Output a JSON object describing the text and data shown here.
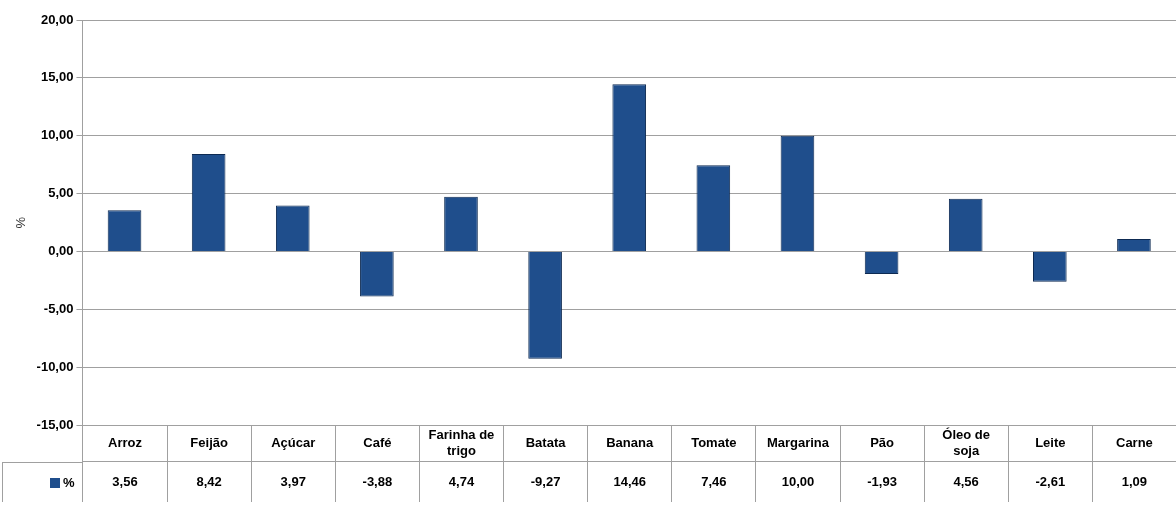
{
  "chart_data": {
    "type": "bar",
    "ylabel": "%",
    "categories": [
      "Arroz",
      "Feijão",
      "Açúcar",
      "Café",
      "Farinha de trigo",
      "Batata",
      "Banana",
      "Tomate",
      "Margarina",
      "Pão",
      "Óleo de soja",
      "Leite",
      "Carne"
    ],
    "series": [
      {
        "name": "%",
        "color": "#1f4e8c",
        "values": [
          3.56,
          8.42,
          3.97,
          -3.88,
          4.74,
          -9.27,
          14.46,
          7.46,
          10.0,
          -1.93,
          4.56,
          -2.61,
          1.09
        ],
        "value_labels": [
          "3,56",
          "8,42",
          "3,97",
          "-3,88",
          "4,74",
          "-9,27",
          "14,46",
          "7,46",
          "10,00",
          "-1,93",
          "4,56",
          "-2,61",
          "1,09"
        ]
      }
    ],
    "ylim": [
      -15,
      20
    ],
    "yticks": [
      {
        "value": -15,
        "label": "-15,00"
      },
      {
        "value": -10,
        "label": "-10,00"
      },
      {
        "value": -5,
        "label": "-5,00"
      },
      {
        "value": 0,
        "label": "0,00"
      },
      {
        "value": 5,
        "label": "5,00"
      },
      {
        "value": 10,
        "label": "10,00"
      },
      {
        "value": 15,
        "label": "15,00"
      },
      {
        "value": 20,
        "label": "20,00"
      }
    ],
    "grid": "y",
    "legend": "bottom left"
  }
}
